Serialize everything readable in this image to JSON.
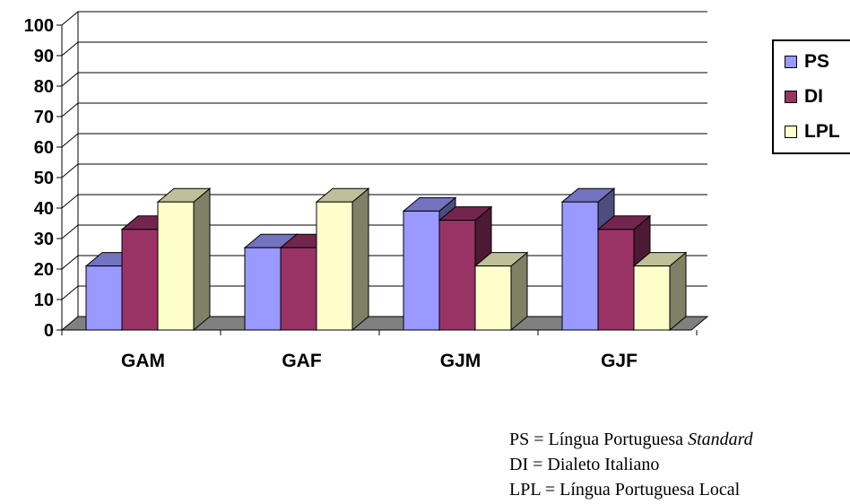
{
  "chart_data": {
    "type": "bar",
    "categories": [
      "GAM",
      "GAF",
      "GJM",
      "GJF"
    ],
    "series": [
      {
        "name": "PS",
        "values": [
          21,
          27,
          39,
          42
        ],
        "color": "#9999ff"
      },
      {
        "name": "DI",
        "values": [
          33,
          27,
          36,
          33
        ],
        "color": "#993366"
      },
      {
        "name": "LPL",
        "values": [
          42,
          42,
          21,
          21
        ],
        "color": "#ffffcc"
      }
    ],
    "yticks": [
      "0",
      "10",
      "20",
      "30",
      "40",
      "50",
      "60",
      "70",
      "80",
      "90",
      "100"
    ],
    "ylim": [
      0,
      100
    ],
    "grid": true,
    "legend_position": "right",
    "three_d": true
  },
  "notes": [
    {
      "abbr": "PS",
      "eq": " = ",
      "text": "Língua Portuguesa ",
      "emph": "Standard"
    },
    {
      "abbr": "DI",
      "eq": " = ",
      "text": "Dialeto Italiano",
      "emph": ""
    },
    {
      "abbr": "LPL",
      "eq": " = ",
      "text": "Língua Portuguesa Local",
      "emph": ""
    }
  ]
}
